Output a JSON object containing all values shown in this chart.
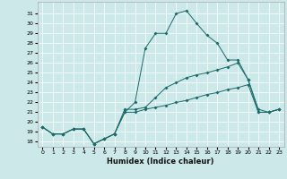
{
  "title": "",
  "xlabel": "Humidex (Indice chaleur)",
  "bg_color": "#cce8e8",
  "grid_color": "#ffffff",
  "line_color": "#1a6b6b",
  "xlim": [
    -0.5,
    23.5
  ],
  "ylim": [
    17.5,
    32.2
  ],
  "xticks": [
    0,
    1,
    2,
    3,
    4,
    5,
    6,
    7,
    8,
    9,
    10,
    11,
    12,
    13,
    14,
    15,
    16,
    17,
    18,
    19,
    20,
    21,
    22,
    23
  ],
  "yticks": [
    18,
    19,
    20,
    21,
    22,
    23,
    24,
    25,
    26,
    27,
    28,
    29,
    30,
    31
  ],
  "line1_x": [
    0,
    1,
    2,
    3,
    4,
    5,
    6,
    7,
    8,
    9,
    10,
    11,
    12,
    13,
    14,
    15,
    16,
    17,
    18,
    19,
    20,
    21,
    22,
    23
  ],
  "line1_y": [
    19.5,
    18.8,
    18.8,
    19.3,
    19.3,
    17.8,
    18.3,
    18.8,
    21.3,
    21.3,
    21.5,
    22.5,
    23.5,
    24.0,
    24.5,
    24.8,
    25.0,
    25.3,
    25.6,
    26.0,
    24.3,
    21.3,
    21.0,
    21.3
  ],
  "line2_x": [
    0,
    1,
    2,
    3,
    4,
    5,
    6,
    7,
    8,
    9,
    10,
    11,
    12,
    13,
    14,
    15,
    16,
    17,
    18,
    19,
    20,
    21,
    22,
    23
  ],
  "line2_y": [
    19.5,
    18.8,
    18.8,
    19.3,
    19.3,
    17.8,
    18.3,
    18.8,
    21.0,
    22.0,
    27.5,
    29.0,
    29.0,
    31.0,
    31.3,
    30.0,
    28.8,
    28.0,
    26.3,
    26.3,
    24.3,
    21.0,
    21.0,
    21.3
  ],
  "line3_x": [
    0,
    1,
    2,
    3,
    4,
    5,
    6,
    7,
    8,
    9,
    10,
    11,
    12,
    13,
    14,
    15,
    16,
    17,
    18,
    19,
    20,
    21,
    22,
    23
  ],
  "line3_y": [
    19.5,
    18.8,
    18.8,
    19.3,
    19.3,
    17.8,
    18.3,
    18.8,
    21.0,
    21.0,
    21.3,
    21.5,
    21.7,
    22.0,
    22.2,
    22.5,
    22.8,
    23.0,
    23.3,
    23.5,
    23.8,
    21.0,
    21.0,
    21.3
  ]
}
